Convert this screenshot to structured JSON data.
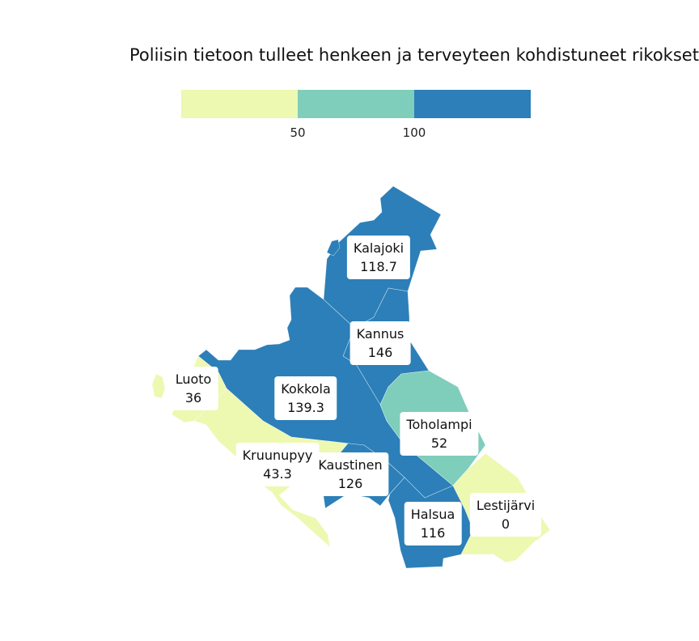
{
  "title": "Poliisin tietoon tulleet henkeen ja terveyteen kohdistuneet rikokset",
  "legend": {
    "colors": [
      "#edf8b1",
      "#7fcdbb",
      "#2c7fb8"
    ],
    "ticks": [
      "50",
      "100"
    ]
  },
  "municipalities": [
    {
      "name": "Kalajoki",
      "value": "118.7"
    },
    {
      "name": "Kannus",
      "value": "146"
    },
    {
      "name": "Luoto",
      "value": "36"
    },
    {
      "name": "Kokkola",
      "value": "139.3"
    },
    {
      "name": "Toholampi",
      "value": "52"
    },
    {
      "name": "Kruunupyy",
      "value": "43.3"
    },
    {
      "name": "Kaustinen",
      "value": "126"
    },
    {
      "name": "Halsua",
      "value": "116"
    },
    {
      "name": "Lestijärvi",
      "value": "0"
    }
  ]
}
